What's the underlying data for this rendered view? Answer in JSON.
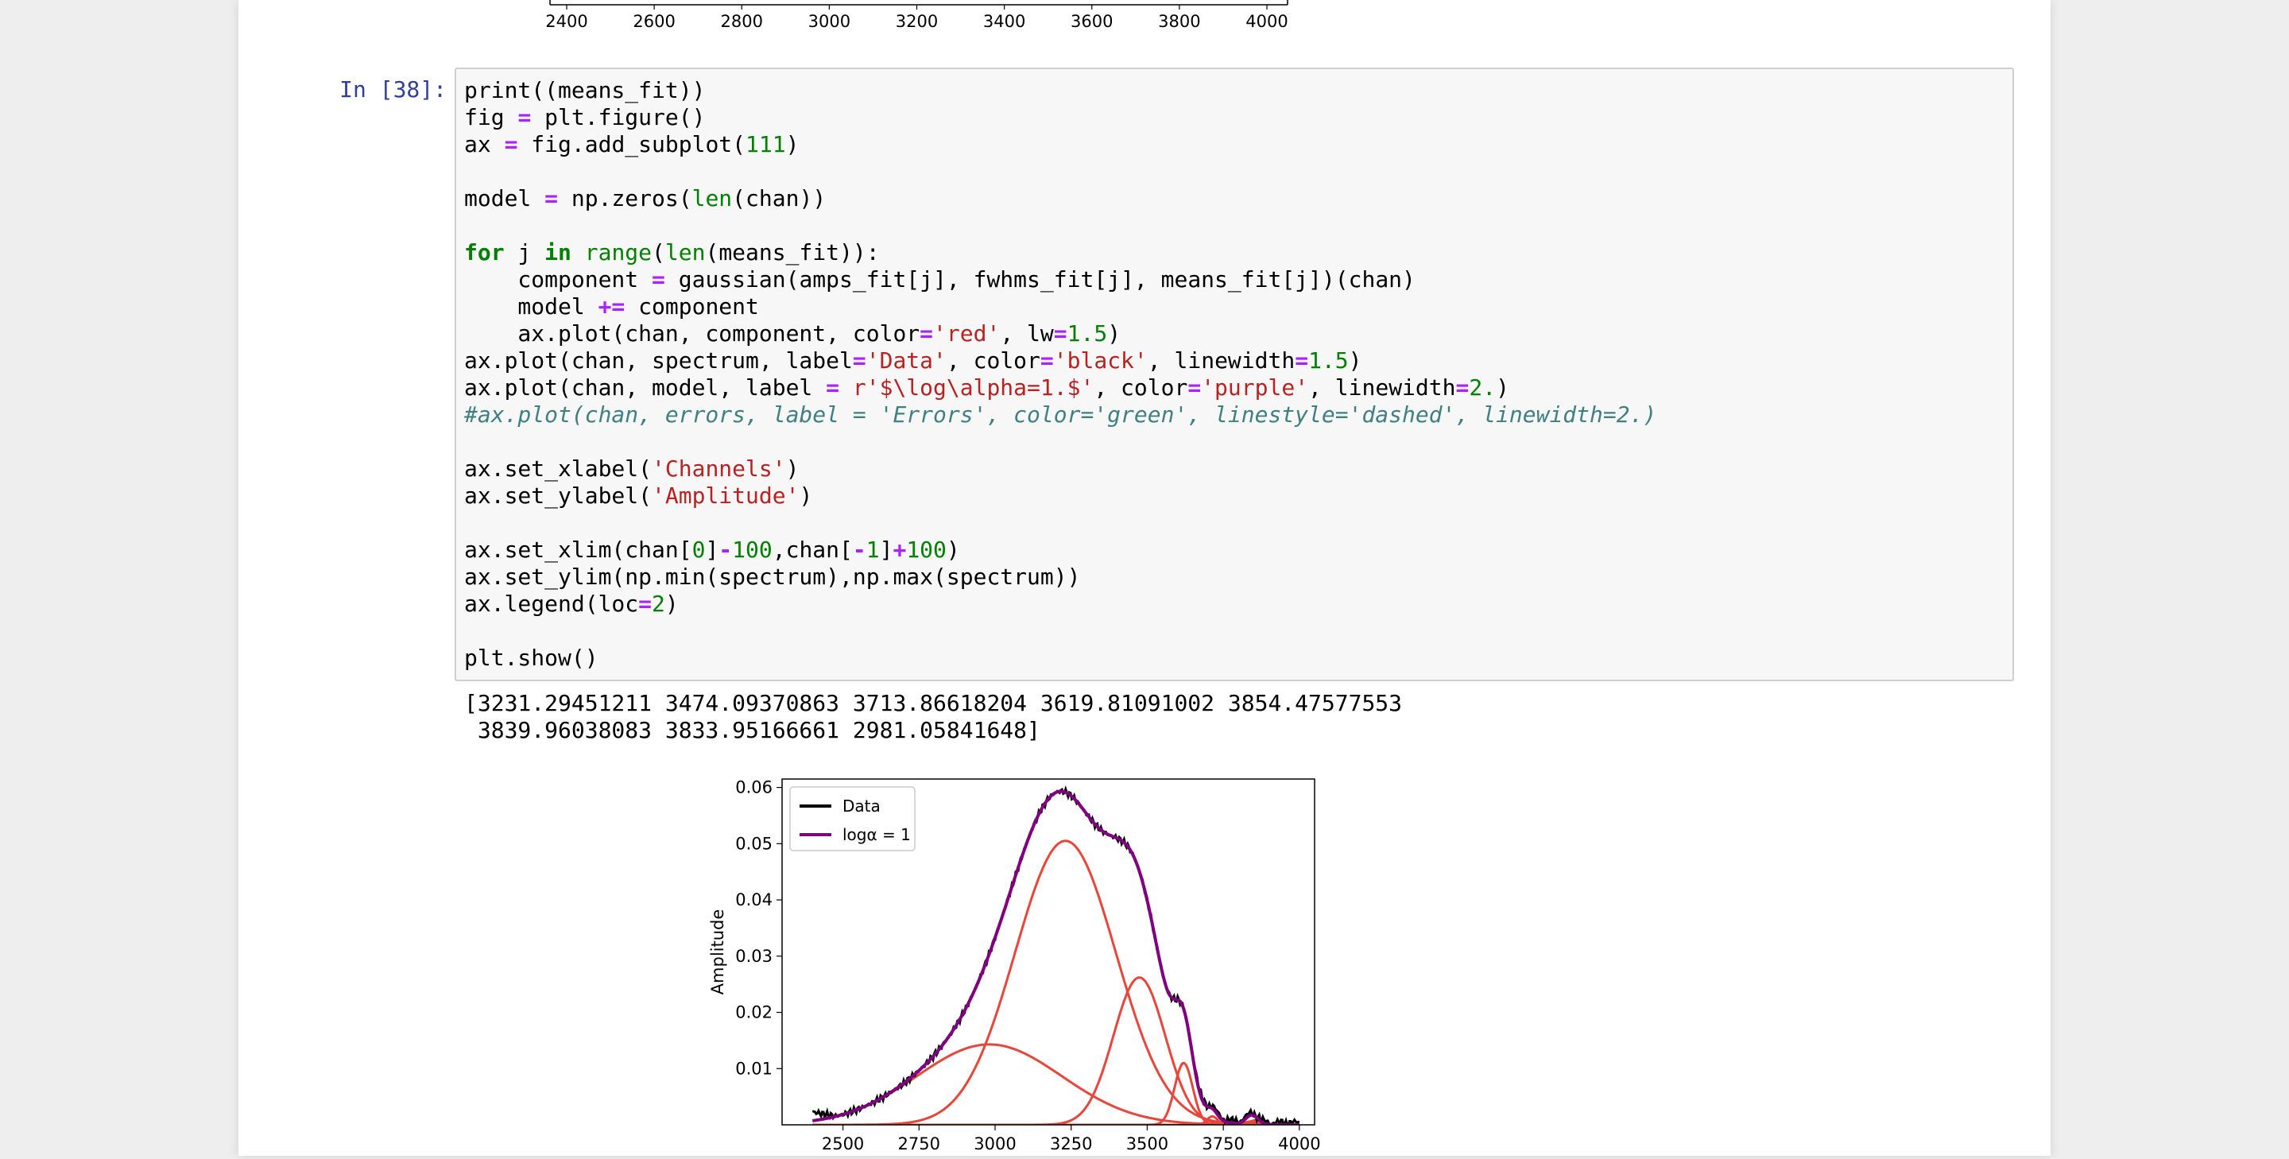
{
  "prev_output": {
    "x_ticks": [
      "2400",
      "2600",
      "2800",
      "3000",
      "3200",
      "3400",
      "3600",
      "3800",
      "4000"
    ]
  },
  "cell": {
    "prompt": "In [38]:",
    "code_lines": [
      [
        [
          "print((means_fit))",
          "t"
        ]
      ],
      [
        [
          "fig ",
          "t"
        ],
        [
          "=",
          "op"
        ],
        [
          " plt.figure()",
          "t"
        ]
      ],
      [
        [
          "ax ",
          "t"
        ],
        [
          "=",
          "op"
        ],
        [
          " fig.add_subplot(",
          "t"
        ],
        [
          "111",
          "num"
        ],
        [
          ")",
          "t"
        ]
      ],
      [],
      [
        [
          "model ",
          "t"
        ],
        [
          "=",
          "op"
        ],
        [
          " np.zeros(",
          "t"
        ],
        [
          "len",
          "bi"
        ],
        [
          "(chan))",
          "t"
        ]
      ],
      [],
      [
        [
          "for",
          "kw"
        ],
        [
          " j ",
          "t"
        ],
        [
          "in",
          "kw"
        ],
        [
          " ",
          "t"
        ],
        [
          "range",
          "bi"
        ],
        [
          "(",
          "t"
        ],
        [
          "len",
          "bi"
        ],
        [
          "(means_fit)):",
          "t"
        ]
      ],
      [
        [
          "    component ",
          "t"
        ],
        [
          "=",
          "op"
        ],
        [
          " gaussian(amps_fit[j], fwhms_fit[j], means_fit[j])(chan)",
          "t"
        ]
      ],
      [
        [
          "    model ",
          "t"
        ],
        [
          "+=",
          "op"
        ],
        [
          " component",
          "t"
        ]
      ],
      [
        [
          "    ax.plot(chan, component, color",
          "t"
        ],
        [
          "=",
          "op"
        ],
        [
          "'red'",
          "str"
        ],
        [
          ", lw",
          "t"
        ],
        [
          "=",
          "op"
        ],
        [
          "1.5",
          "num"
        ],
        [
          ")",
          "t"
        ]
      ],
      [
        [
          "ax.plot(chan, spectrum, label",
          "t"
        ],
        [
          "=",
          "op"
        ],
        [
          "'Data'",
          "str"
        ],
        [
          ", color",
          "t"
        ],
        [
          "=",
          "op"
        ],
        [
          "'black'",
          "str"
        ],
        [
          ", linewidth",
          "t"
        ],
        [
          "=",
          "op"
        ],
        [
          "1.5",
          "num"
        ],
        [
          ")",
          "t"
        ]
      ],
      [
        [
          "ax.plot(chan, model, label ",
          "t"
        ],
        [
          "=",
          "op"
        ],
        [
          " ",
          "t"
        ],
        [
          "r'$\\log\\alpha=1.$'",
          "str"
        ],
        [
          ", color",
          "t"
        ],
        [
          "=",
          "op"
        ],
        [
          "'purple'",
          "str"
        ],
        [
          ", linewidth",
          "t"
        ],
        [
          "=",
          "op"
        ],
        [
          "2.",
          "num"
        ],
        [
          ")",
          "t"
        ]
      ],
      [
        [
          "#ax.plot(chan, errors, label = 'Errors', color='green', linestyle='dashed', linewidth=2.)",
          "com"
        ]
      ],
      [],
      [
        [
          "ax.set_xlabel(",
          "t"
        ],
        [
          "'Channels'",
          "str"
        ],
        [
          ")",
          "t"
        ]
      ],
      [
        [
          "ax.set_ylabel(",
          "t"
        ],
        [
          "'Amplitude'",
          "str"
        ],
        [
          ")",
          "t"
        ]
      ],
      [],
      [
        [
          "ax.set_xlim(chan[",
          "t"
        ],
        [
          "0",
          "num"
        ],
        [
          "]",
          "t"
        ],
        [
          "-",
          "op"
        ],
        [
          "100",
          "num"
        ],
        [
          ",chan[",
          "t"
        ],
        [
          "-",
          "op"
        ],
        [
          "1",
          "num"
        ],
        [
          "]",
          "t"
        ],
        [
          "+",
          "op"
        ],
        [
          "100",
          "num"
        ],
        [
          ")",
          "t"
        ]
      ],
      [
        [
          "ax.set_ylim(np.min(spectrum),np.max(spectrum))",
          "t"
        ]
      ],
      [
        [
          "ax.legend(loc",
          "t"
        ],
        [
          "=",
          "op"
        ],
        [
          "2",
          "num"
        ],
        [
          ")",
          "t"
        ]
      ],
      [],
      [
        [
          "plt.show()",
          "t"
        ]
      ]
    ],
    "stdout_lines": [
      "[3231.29451211 3474.09370863 3713.86618204 3619.81091002 3854.47577553",
      " 3839.96038083 3833.95166661 2981.05841648]"
    ]
  },
  "chart_data": {
    "type": "line",
    "ylabel": "Amplitude",
    "xlim": [
      2300,
      4050
    ],
    "ylim": [
      0.0,
      0.0615
    ],
    "x_ticks": [
      2500,
      2750,
      3000,
      3250,
      3500,
      3750,
      4000
    ],
    "x_tick_labels": [
      "2500",
      "2750",
      "3000",
      "3250",
      "3500",
      "3750",
      "4000"
    ],
    "y_ticks": [
      0.01,
      0.02,
      0.03,
      0.04,
      0.05,
      0.06
    ],
    "y_tick_labels": [
      "0.01",
      "0.02",
      "0.03",
      "0.04",
      "0.05",
      "0.06"
    ],
    "legend": {
      "placement": "upper-left",
      "entries": [
        {
          "label": "Data",
          "color": "#000000"
        },
        {
          "label": "logα = 1",
          "color": "#800080"
        }
      ]
    },
    "components": [
      {
        "mean": 2981.06,
        "amp": 0.0143,
        "fwhm": 560
      },
      {
        "mean": 3231.29,
        "amp": 0.0505,
        "fwhm": 390
      },
      {
        "mean": 3474.09,
        "amp": 0.0262,
        "fwhm": 200
      },
      {
        "mean": 3619.81,
        "amp": 0.011,
        "fwhm": 70
      },
      {
        "mean": 3713.87,
        "amp": 0.0015,
        "fwhm": 40
      },
      {
        "mean": 3854.48,
        "amp": 0.0008,
        "fwhm": 40
      },
      {
        "mean": 3839.96,
        "amp": 0.0006,
        "fwhm": 40
      },
      {
        "mean": 3833.95,
        "amp": 0.0005,
        "fwhm": 40
      }
    ],
    "component_color": "#e8463a",
    "model_color": "#800080",
    "data_color": "#000000",
    "x_range": [
      2400,
      4000
    ]
  }
}
